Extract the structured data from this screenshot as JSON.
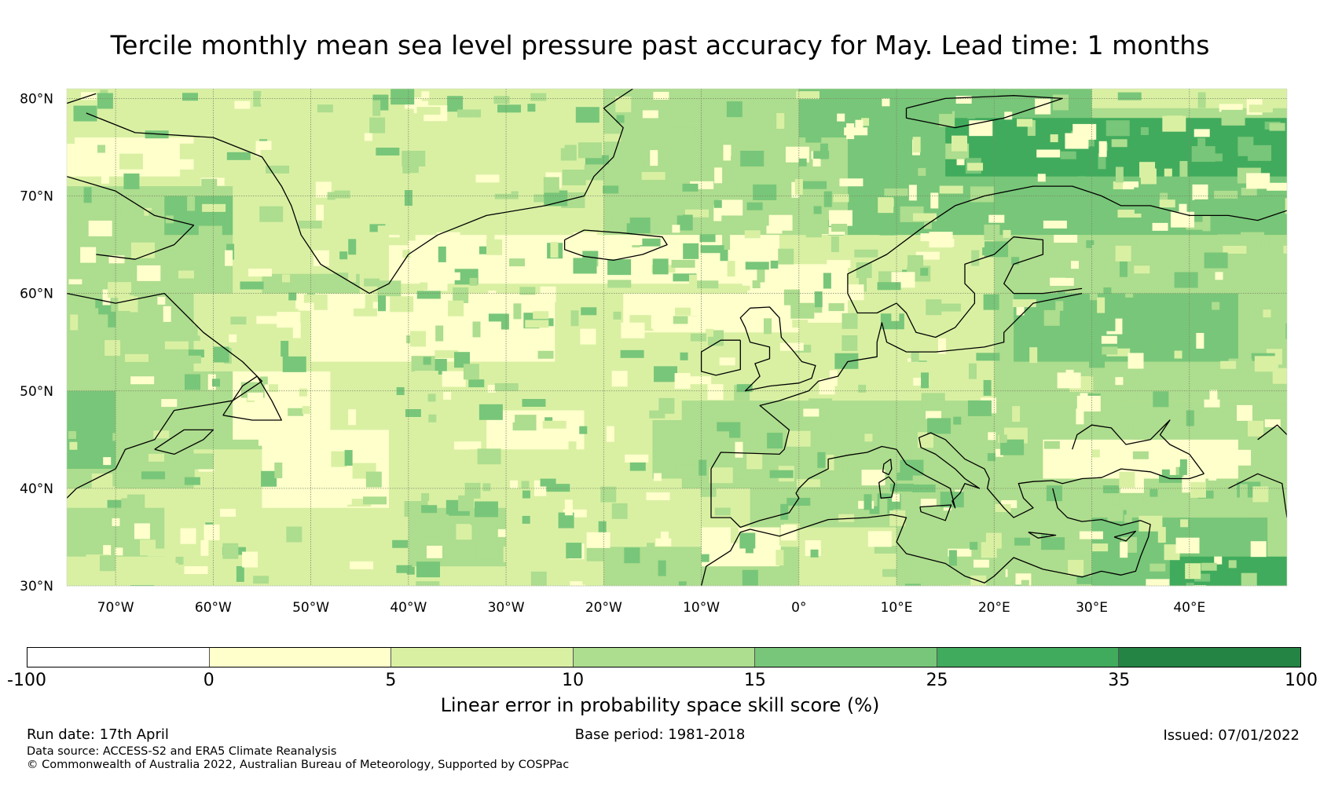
{
  "title": "Tercile monthly mean sea level pressure past accuracy for May. Lead time: 1 months",
  "map": {
    "lat_labels": [
      "80°N",
      "70°N",
      "60°N",
      "50°N",
      "40°N",
      "30°N"
    ],
    "lon_labels": [
      "70°W",
      "60°W",
      "50°W",
      "40°W",
      "30°W",
      "20°W",
      "10°W",
      "0°",
      "10°E",
      "20°E",
      "30°E",
      "40°E"
    ],
    "extent": {
      "lon": [
        -75,
        50
      ],
      "lat": [
        30,
        81
      ]
    }
  },
  "colorbar": {
    "label": "Linear error in probability space skill score (%)",
    "ticks": [
      "-100",
      "0",
      "5",
      "10",
      "15",
      "25",
      "35",
      "100"
    ],
    "colors": [
      "#ffffff",
      "#ffffcc",
      "#d9f0a3",
      "#addd8e",
      "#78c679",
      "#41ab5d",
      "#238443"
    ]
  },
  "footer": {
    "run_date": "Run date: 17th April",
    "base_period": "Base period: 1981-2018",
    "issued": "Issued: 07/01/2022",
    "data_source": "Data source: ACCESS-S2 and ERA5 Climate Reanalysis",
    "copyright": "© Commonwealth of Australia 2022, Australian Bureau of Meteorology, Supported by COSPPac"
  }
}
